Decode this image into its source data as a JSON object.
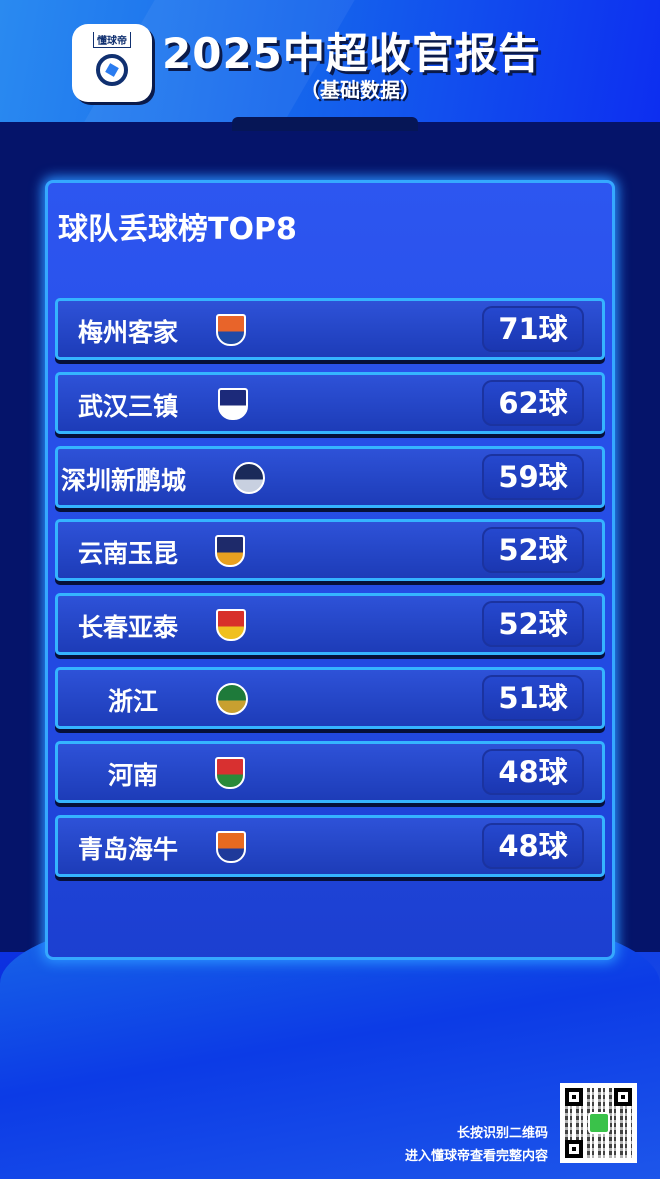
{
  "header": {
    "logo_text": "懂球帝",
    "title": "2025中超收官报告",
    "subtitle": "（基础数据）"
  },
  "panel": {
    "title": "球队丢球榜TOP8"
  },
  "teams": [
    {
      "name": "梅州客家",
      "goals_conceded": "71球",
      "badge": "meizhou-hakka-crest",
      "colors": [
        "#e8642a",
        "#1f4aa8"
      ]
    },
    {
      "name": "武汉三镇",
      "goals_conceded": "62球",
      "badge": "wuhan-three-towns-crest",
      "colors": [
        "#1c2a7a",
        "#ffffff"
      ]
    },
    {
      "name": "深圳新鹏城",
      "goals_conceded": "59球",
      "badge": "shenzhen-peng-city-crest",
      "colors": [
        "#1a2a5a",
        "#c8d0e0"
      ]
    },
    {
      "name": "云南玉昆",
      "goals_conceded": "52球",
      "badge": "yunnan-yukun-crest",
      "colors": [
        "#1e2a6a",
        "#e8a020"
      ]
    },
    {
      "name": "长春亚泰",
      "goals_conceded": "52球",
      "badge": "changchun-yatai-crest",
      "colors": [
        "#d8302a",
        "#f0c020"
      ]
    },
    {
      "name": "浙江",
      "goals_conceded": "51球",
      "badge": "zhejiang-crest",
      "colors": [
        "#1e7a3a",
        "#c8a030"
      ]
    },
    {
      "name": "河南",
      "goals_conceded": "48球",
      "badge": "henan-crest",
      "colors": [
        "#d83030",
        "#2a8a3a"
      ]
    },
    {
      "name": "青岛海牛",
      "goals_conceded": "48球",
      "badge": "qingdao-hainiu-crest",
      "colors": [
        "#e86a20",
        "#1f3a9a"
      ]
    }
  ],
  "footer": {
    "line1": "长按识别二维码",
    "line2": "进入懂球帝查看完整内容"
  }
}
